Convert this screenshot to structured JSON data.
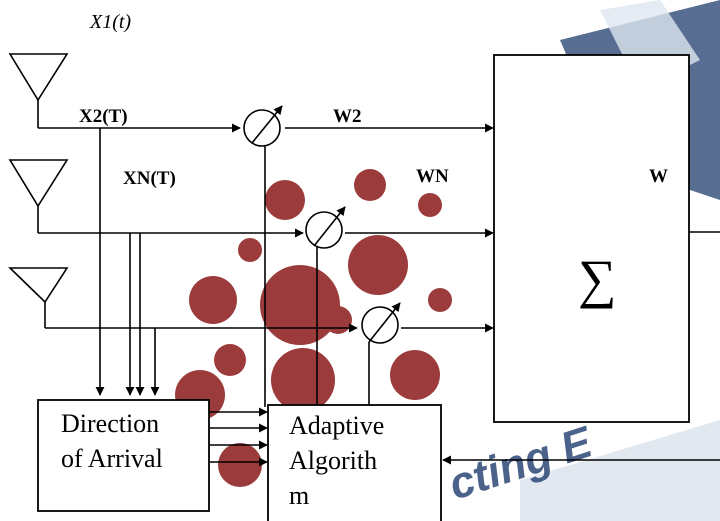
{
  "labels": {
    "x1": "X1(t)",
    "x2": "X2(T)",
    "xn": "XN(T)",
    "w2": "W2",
    "wn": "WN",
    "w": "W"
  },
  "summer": {
    "symbol": "∑"
  },
  "doa_box": {
    "line1": "Direction",
    "line2": "of Arrival"
  },
  "adaptive_box": {
    "line1": "Adaptive",
    "line2": "Algorith",
    "line3": "m"
  },
  "watermark": {
    "text": "cting E",
    "color": "#1f3c6e",
    "blob_color": "#8b1a1a"
  },
  "colors": {
    "lines": "#000000",
    "background": "#ffffff"
  }
}
